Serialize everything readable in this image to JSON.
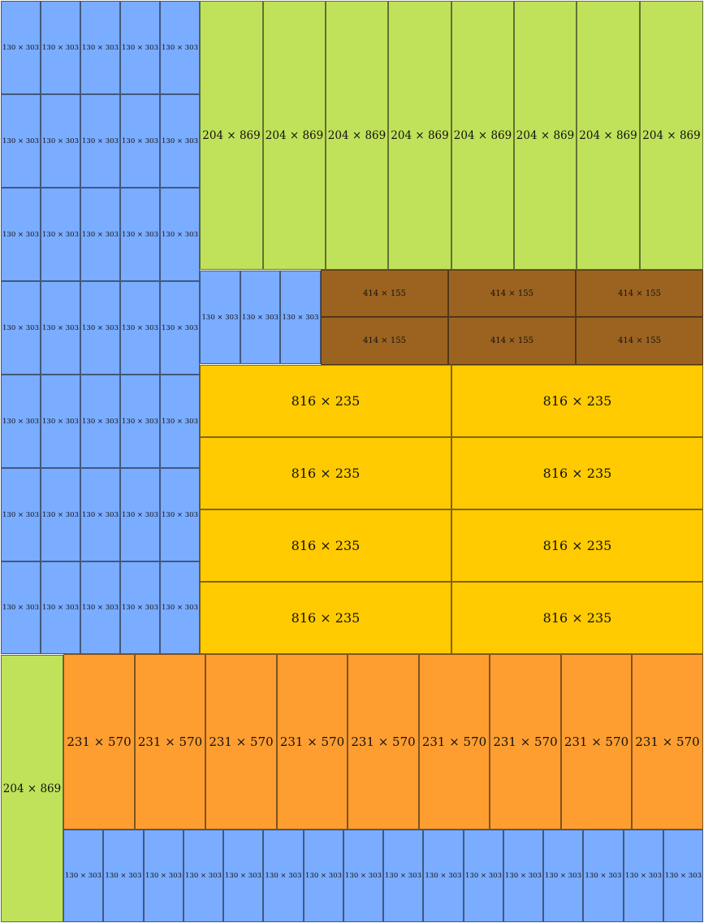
{
  "colors": {
    "blue": "#7aacff",
    "green": "#c0e25a",
    "brown": "#9c6320",
    "gold": "#ffcb00",
    "orange": "#ff9e30"
  },
  "labels": {
    "small": "130 × 303",
    "tall": "204 × 869",
    "brown": "414 × 155",
    "wide": "816 × 235",
    "orange": "231 × 570"
  }
}
